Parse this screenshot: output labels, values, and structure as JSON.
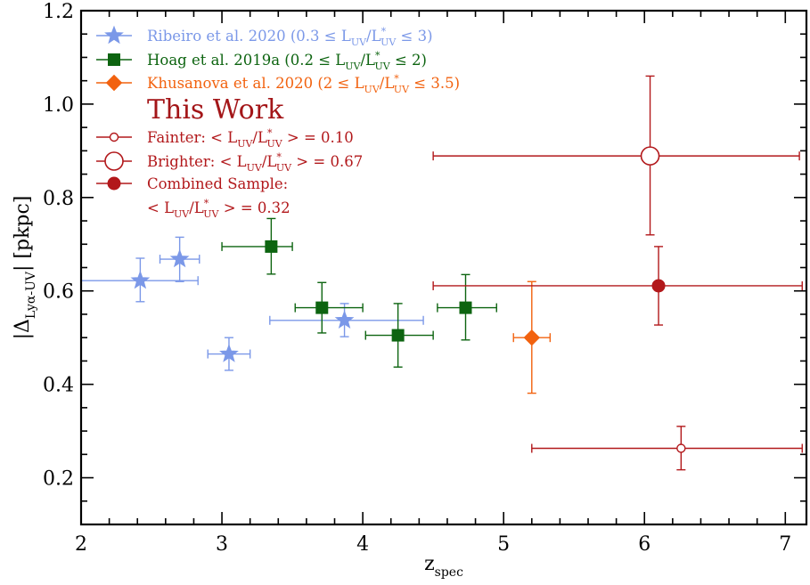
{
  "chart_data": {
    "type": "scatter",
    "xlabel": "z",
    "xlabel_sub": "spec",
    "ylabel": "|Δ",
    "ylabel_sub": "Lyα-UV",
    "ylabel_tail": "| [pkpc]",
    "xlim": [
      2,
      7.15
    ],
    "ylim": [
      0.1,
      1.2
    ],
    "x_ticks": [
      "2",
      "3",
      "4",
      "5",
      "6",
      "7"
    ],
    "y_ticks": [
      "0.2",
      "0.4",
      "0.6",
      "0.8",
      "1.0",
      "1.2"
    ],
    "grid": false,
    "legend_position": "top-left",
    "legend_heading": "This Work",
    "series": [
      {
        "name": "Ribeiro et al. 2020 (0.3 ≤ L_UV/L*_UV ≤ 3)",
        "legend_main": "Ribeiro et al. 2020 (0.3 ≤ L",
        "legend_sub1": "UV",
        "legend_mid": "/L",
        "legend_sup": "*",
        "legend_sub2": "UV",
        "legend_tail": "≤ 3)",
        "marker": "star",
        "filled": true,
        "color": "#7b98e8",
        "points": [
          {
            "x": 2.42,
            "y": 0.622,
            "x_lo": 2.0,
            "x_hi": 2.83,
            "y_lo": 0.577,
            "y_hi": 0.67
          },
          {
            "x": 2.7,
            "y": 0.668,
            "x_lo": 2.56,
            "x_hi": 2.84,
            "y_lo": 0.62,
            "y_hi": 0.715
          },
          {
            "x": 3.05,
            "y": 0.465,
            "x_lo": 2.9,
            "x_hi": 3.2,
            "y_lo": 0.43,
            "y_hi": 0.5
          },
          {
            "x": 3.87,
            "y": 0.537,
            "x_lo": 3.34,
            "x_hi": 4.43,
            "y_lo": 0.502,
            "y_hi": 0.573
          }
        ]
      },
      {
        "name": "Hoag et al. 2019a (0.2 ≤ L_UV/L*_UV ≤ 2)",
        "legend_main": "Hoag et al. 2019a (0.2 ≤ L",
        "legend_sub1": "UV",
        "legend_mid": "/L",
        "legend_sup": "*",
        "legend_sub2": "UV",
        "legend_tail": "≤ 2)",
        "marker": "square",
        "filled": true,
        "color": "#0d6410",
        "points": [
          {
            "x": 3.35,
            "y": 0.695,
            "x_lo": 3.0,
            "x_hi": 3.5,
            "y_lo": 0.636,
            "y_hi": 0.755
          },
          {
            "x": 3.71,
            "y": 0.564,
            "x_lo": 3.52,
            "x_hi": 4.0,
            "y_lo": 0.51,
            "y_hi": 0.618
          },
          {
            "x": 4.25,
            "y": 0.505,
            "x_lo": 4.02,
            "x_hi": 4.5,
            "y_lo": 0.437,
            "y_hi": 0.573
          },
          {
            "x": 4.73,
            "y": 0.564,
            "x_lo": 4.53,
            "x_hi": 4.95,
            "y_lo": 0.495,
            "y_hi": 0.635
          }
        ]
      },
      {
        "name": "Khusanova et al. 2020 (2 ≤ L_UV/L*_UV ≤ 3.5)",
        "legend_main": "Khusanova et al. 2020 (2 ≤ L",
        "legend_sub1": "UV",
        "legend_mid": "/L",
        "legend_sup": "*",
        "legend_sub2": "UV",
        "legend_tail": "≤ 3.5)",
        "marker": "diamond",
        "filled": true,
        "color": "#f2620f",
        "points": [
          {
            "x": 5.2,
            "y": 0.5,
            "x_lo": 5.07,
            "x_hi": 5.33,
            "y_lo": 0.381,
            "y_hi": 0.62
          }
        ]
      },
      {
        "name": "Fainter: < L_UV/L*_UV > = 0.10",
        "legend_main": "Fainter: < L",
        "legend_sub1": "UV",
        "legend_mid": "/L",
        "legend_sup": "*",
        "legend_sub2": "UV",
        "legend_tail": "> = 0.10",
        "marker": "circle-small",
        "filled": false,
        "color": "#b2181b",
        "points": [
          {
            "x": 6.26,
            "y": 0.263,
            "x_lo": 5.2,
            "x_hi": 7.12,
            "y_lo": 0.217,
            "y_hi": 0.31
          }
        ]
      },
      {
        "name": "Brighter: < L_UV/L*_UV > = 0.67",
        "legend_main": "Brighter: < L",
        "legend_sub1": "UV",
        "legend_mid": "/L",
        "legend_sup": "*",
        "legend_sub2": "UV",
        "legend_tail": "> = 0.67",
        "marker": "circle-large",
        "filled": false,
        "color": "#b2181b",
        "points": [
          {
            "x": 6.04,
            "y": 0.889,
            "x_lo": 4.5,
            "x_hi": 7.1,
            "y_lo": 0.72,
            "y_hi": 1.06
          }
        ]
      },
      {
        "name": "Combined Sample: < L_UV/L*_UV > = 0.32",
        "legend_main": "Combined Sample:",
        "legend_line2_main": "< L",
        "legend_sub1": "UV",
        "legend_mid": "/L",
        "legend_sup": "*",
        "legend_sub2": "UV",
        "legend_tail": "> = 0.32",
        "marker": "circle",
        "filled": true,
        "color": "#b2181b",
        "points": [
          {
            "x": 6.1,
            "y": 0.611,
            "x_lo": 4.5,
            "x_hi": 7.12,
            "y_lo": 0.527,
            "y_hi": 0.695
          }
        ]
      }
    ]
  }
}
